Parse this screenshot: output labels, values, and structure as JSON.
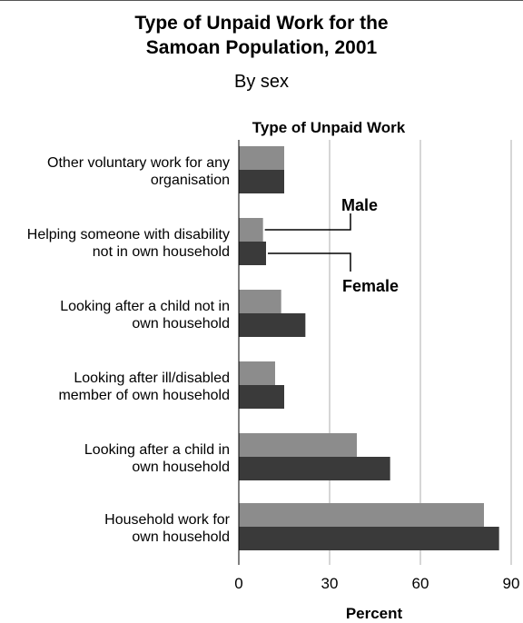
{
  "title_lines": [
    "Type of Unpaid Work for the",
    "Samoan Population, 2001"
  ],
  "subtitle": "By sex",
  "colors": {
    "male": "#8c8c8c",
    "female": "#3a3a3a",
    "grid": "#c8c8c8",
    "axis": "#000000"
  },
  "chart_data": {
    "type": "bar",
    "orientation": "horizontal",
    "category_axis_title": "Type of Unpaid Work",
    "xlabel": "Percent",
    "xlim": [
      0,
      90
    ],
    "xticks": [
      0,
      30,
      60,
      90
    ],
    "grid": true,
    "categories": [
      [
        "Other voluntary work for any",
        "organisation"
      ],
      [
        "Helping someone with disability",
        "not in own household"
      ],
      [
        "Looking after a child not in",
        "own household"
      ],
      [
        "Looking after ill/disabled",
        "member of own household"
      ],
      [
        "Looking after a child in",
        "own household"
      ],
      [
        "Household work for",
        "own household"
      ]
    ],
    "series": [
      {
        "name": "Male",
        "color": "#8c8c8c",
        "values": [
          15,
          8,
          14,
          12,
          39,
          81
        ]
      },
      {
        "name": "Female",
        "color": "#3a3a3a",
        "values": [
          15,
          9,
          22,
          15,
          50,
          86
        ]
      }
    ]
  }
}
